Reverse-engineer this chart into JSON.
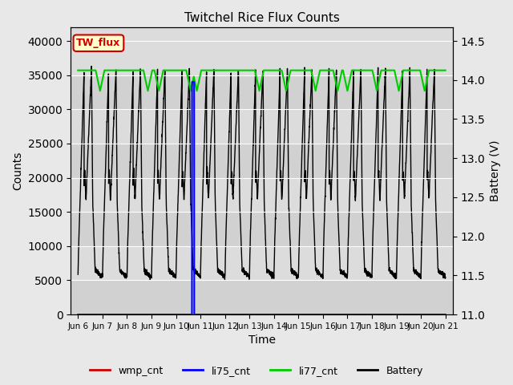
{
  "title": "Twitchel Rice Flux Counts",
  "xlabel": "Time",
  "ylabel_left": "Counts",
  "ylabel_right": "Battery (V)",
  "ylim_left": [
    0,
    42000
  ],
  "ylim_right": [
    11.0,
    14.5
  ],
  "yticks_left": [
    0,
    5000,
    10000,
    15000,
    20000,
    25000,
    30000,
    35000,
    40000
  ],
  "yticks_right": [
    11.0,
    11.5,
    12.0,
    12.5,
    13.0,
    13.5,
    14.0,
    14.5
  ],
  "xtick_labels": [
    "Jun 6",
    "Jun 7",
    "Jun 8",
    "Jun 9",
    "Jun 10",
    "Jun 11",
    "Jun 12",
    "Jun 13",
    "Jun 14",
    "Jun 15",
    "Jun 16",
    "Jun 17",
    "Jun 18",
    "Jun 19",
    "Jun 20",
    "Jun 21"
  ],
  "fig_facecolor": "#e8e8e8",
  "ax_facecolor": "#dcdcdc",
  "grid_color": "#ffffff",
  "annotation_box_text": "TW_flux",
  "annotation_box_facecolor": "#ffffcc",
  "annotation_box_edgecolor": "#cc0000",
  "legend_entries": [
    "wmp_cnt",
    "li75_cnt",
    "li77_cnt",
    "Battery"
  ],
  "legend_colors": [
    "#cc0000",
    "#0000ff",
    "#00cc00",
    "#000000"
  ],
  "li77_level": 35700,
  "li77_dip_depth": 3000,
  "batt_peak": 36000,
  "batt_trough": 5500,
  "batt_mid_bump": 19000,
  "batt_mid_bump2": 16500
}
